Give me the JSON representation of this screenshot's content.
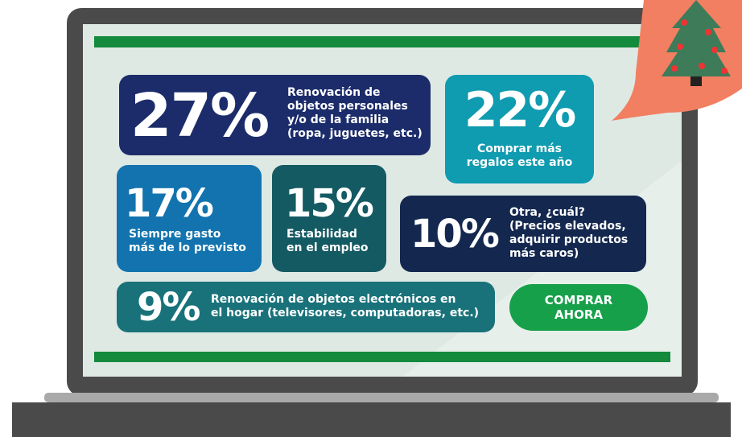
{
  "cards": [
    {
      "percent": "27%",
      "text": [
        "Renovación de",
        "objetos personales",
        "y/o de la familia",
        "(ropa, juguetes, etc.)"
      ]
    },
    {
      "percent": "22%",
      "text": [
        "Comprar más",
        "regalos este año"
      ]
    },
    {
      "percent": "17%",
      "text": [
        "Siempre gasto",
        "más de lo previsto"
      ]
    },
    {
      "percent": "15%",
      "text": [
        "Estabilidad",
        "en el empleo"
      ]
    },
    {
      "percent": "10%",
      "text": [
        "Otra, ¿cuál?",
        "(Precios elevados,",
        "adquirir productos",
        "más caros)"
      ]
    },
    {
      "percent": "9%",
      "text": [
        "Renovación de objetos electrónicos en",
        "el hogar (televisores, computadoras, etc.)"
      ]
    }
  ],
  "button": {
    "label": [
      "COMPRAR",
      "AHORA"
    ]
  }
}
